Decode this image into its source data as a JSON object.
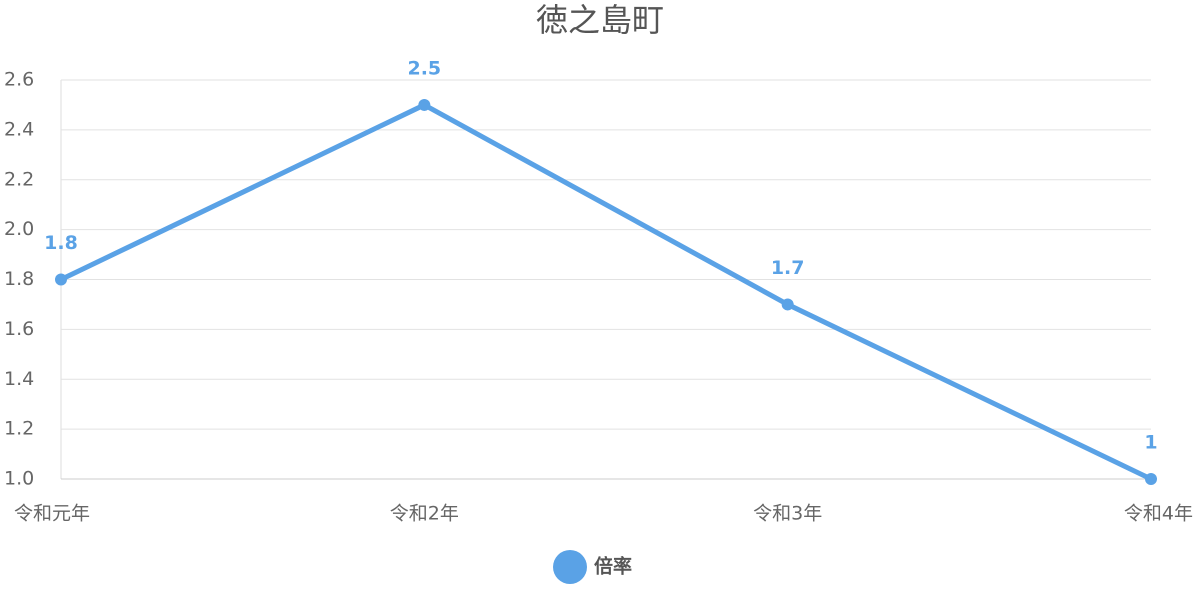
{
  "chart_data": {
    "type": "line",
    "title": "徳之島町",
    "categories": [
      "令和元年",
      "令和2年",
      "令和3年",
      "令和4年"
    ],
    "series": [
      {
        "name": "倍率",
        "color": "#5aa2e6",
        "values": [
          1.8,
          2.5,
          1.7,
          1
        ]
      }
    ],
    "ylim": [
      1,
      2.6
    ],
    "yticks": [
      {
        "value": 1,
        "label": "1.0"
      },
      1.2,
      1.4,
      1.6,
      1.8,
      {
        "value": 2,
        "label": "2.0"
      },
      2.2,
      2.4,
      2.6
    ],
    "grid": true,
    "legend": "bottom"
  }
}
